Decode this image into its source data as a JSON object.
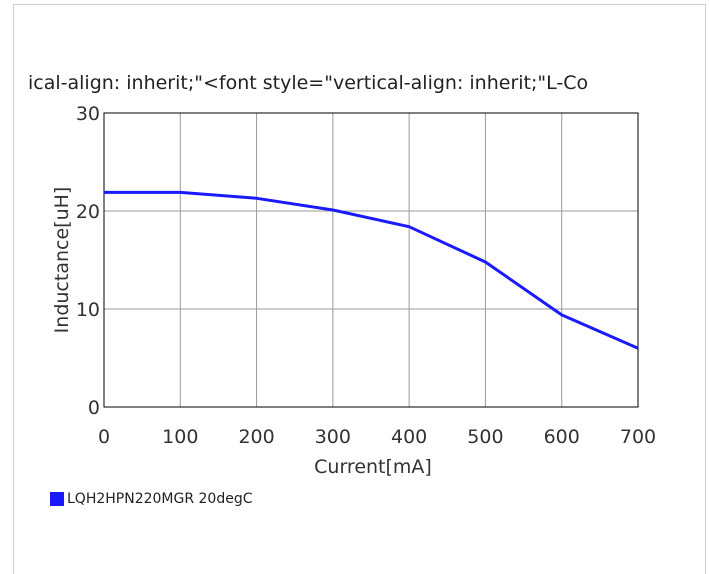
{
  "chart_data": {
    "type": "line",
    "title": "ical-align: inherit;\"<font style=\"vertical-align: inherit;\"L-Co",
    "xlabel": "Current[mA]",
    "ylabel": "Inductance[uH]",
    "xlim": [
      0,
      700
    ],
    "ylim": [
      0,
      30
    ],
    "xticks": [
      0,
      100,
      200,
      300,
      400,
      500,
      600,
      700
    ],
    "yticks": [
      0,
      10,
      20,
      30
    ],
    "grid": true,
    "legend_position": "bottom-left",
    "series": [
      {
        "name": "LQH2HPN220MGR 20degC",
        "color": "#1a1aff",
        "x": [
          0,
          100,
          200,
          300,
          400,
          500,
          600,
          700
        ],
        "y": [
          21.9,
          21.9,
          21.3,
          20.1,
          18.4,
          14.8,
          9.4,
          6.0
        ]
      }
    ]
  }
}
